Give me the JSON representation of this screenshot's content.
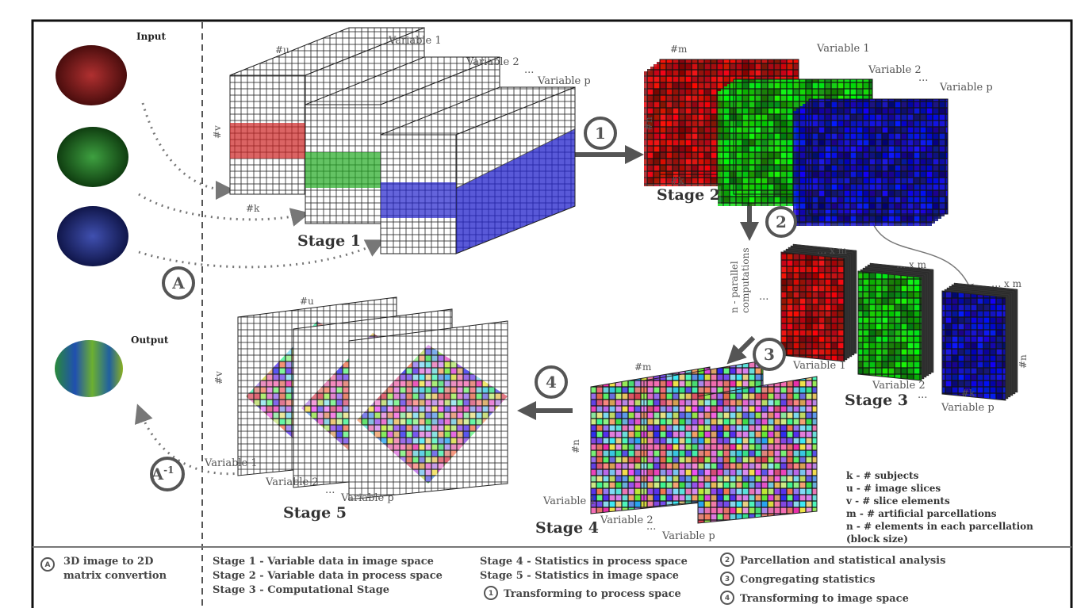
{
  "input_label": "Input",
  "output_label": "Output",
  "markers": {
    "a": "A",
    "a_inverse": "A",
    "a_inverse_exponent": "-1"
  },
  "steps": [
    "1",
    "2",
    "3",
    "4"
  ],
  "ellipsis": "...",
  "stage1": {
    "title": "Stage 1",
    "axes": {
      "u": "#u",
      "v": "#v",
      "k": "#k"
    },
    "variables": [
      "Variable 1",
      "Variable 2",
      "Variable p"
    ]
  },
  "stage2": {
    "title": "Stage 2",
    "axes": {
      "m": "#m",
      "n": "#n",
      "k": "#k"
    },
    "variables": [
      "Variable 1",
      "Variable 2",
      "Variable p"
    ]
  },
  "stage3": {
    "title": "Stage 3",
    "parallel_label": [
      "n - parallel",
      "computations"
    ],
    "repeat_label": "x m",
    "axes": {
      "k": "#k",
      "n": "#n"
    },
    "variables": [
      "Variable 1",
      "Variable 2",
      "Variable p"
    ]
  },
  "stage4": {
    "title": "Stage 4",
    "axes": {
      "m": "#m",
      "n": "#n"
    },
    "variables": [
      "Variable 1",
      "Variable 2",
      "Variable p"
    ]
  },
  "stage5": {
    "title": "Stage 5",
    "axes": {
      "u": "#u",
      "v": "#v"
    },
    "variables": [
      "Variable 1",
      "Variable 2",
      "Variable p"
    ]
  },
  "legend": [
    "k - # subjects",
    "u - # image slices",
    "v - # slice elements",
    "m - # artificial parcellations",
    "n - # elements in each parcellation",
    "(block size)"
  ],
  "footer": {
    "conversion": [
      "3D image to 2D",
      "matrix convertion"
    ],
    "stage_descriptions": [
      "Stage 1 - Variable data in image space",
      "Stage 2 - Variable data in process space",
      "Stage 3 - Computational Stage",
      "Stage 4 - Statistics in process space",
      "Stage 5 - Statistics in image space"
    ],
    "step_descriptions": [
      "Transforming to process space",
      "Parcellation and statistical analysis",
      "Congregating statistics",
      "Transforming to image space"
    ]
  }
}
